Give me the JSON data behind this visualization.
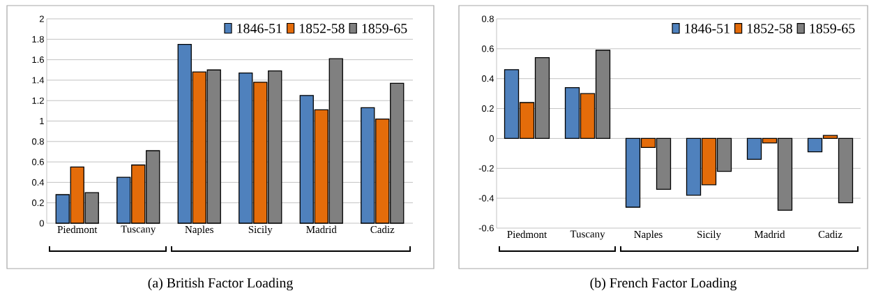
{
  "chart_data": [
    {
      "type": "bar",
      "title": "(a) British Factor Loading",
      "categories": [
        "Piedmont",
        "Tuscany",
        "Naples",
        "Sicily",
        "Madrid",
        "Cadiz"
      ],
      "series": [
        {
          "name": "1846-51",
          "color": "#4f81bd",
          "values": [
            0.28,
            0.45,
            1.75,
            1.47,
            1.25,
            1.13
          ]
        },
        {
          "name": "1852-58",
          "color": "#e46c0a",
          "values": [
            0.55,
            0.57,
            1.48,
            1.38,
            1.11,
            1.02
          ]
        },
        {
          "name": "1859-65",
          "color": "#808080",
          "values": [
            0.3,
            0.71,
            1.5,
            1.49,
            1.61,
            1.37
          ]
        }
      ],
      "ylim": [
        0,
        2
      ],
      "yticks": [
        0,
        0.2,
        0.4,
        0.6,
        0.8,
        1,
        1.2,
        1.4,
        1.6,
        1.8,
        2
      ],
      "grid": "y",
      "legend": "top right"
    },
    {
      "type": "bar",
      "title": "(b) French Factor Loading",
      "categories": [
        "Piedmont",
        "Tuscany",
        "Naples",
        "Sicily",
        "Madrid",
        "Cadiz"
      ],
      "series": [
        {
          "name": "1846-51",
          "color": "#4f81bd",
          "values": [
            0.46,
            0.34,
            -0.46,
            -0.38,
            -0.14,
            -0.09
          ]
        },
        {
          "name": "1852-58",
          "color": "#e46c0a",
          "values": [
            0.24,
            0.3,
            -0.06,
            -0.31,
            -0.03,
            0.02
          ]
        },
        {
          "name": "1859-65",
          "color": "#808080",
          "values": [
            0.54,
            0.59,
            -0.34,
            -0.22,
            -0.48,
            -0.43
          ]
        }
      ],
      "ylim": [
        -0.6,
        0.8
      ],
      "yticks": [
        -0.6,
        -0.4,
        -0.2,
        0,
        0.2,
        0.4,
        0.6,
        0.8
      ],
      "grid": "y",
      "legend": "top right"
    }
  ]
}
